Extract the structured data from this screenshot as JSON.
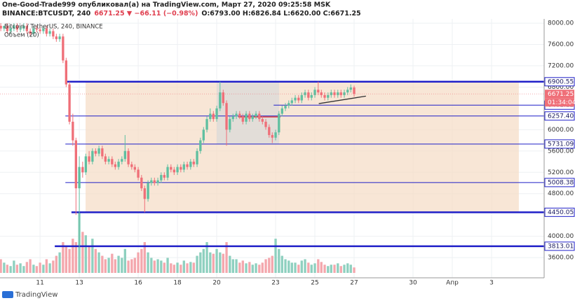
{
  "header": {
    "publisher": "One-Good-Trade999 опубликовал(а) на TradingView.com, Март 27, 2020 09:25:58 MSK",
    "symbol": "BINANCE:BTCUSDT, 240",
    "change": "6671.25 ▼ −66.11 (−0.98%)",
    "ohlc": "O:6793.00 H:6826.84 L:6620.00 C:6671.25"
  },
  "footer": "TradingView",
  "chart_data": {
    "type": "candlestick",
    "legend": [
      "Bitcoin / TetherUS, 240, BINANCE",
      "Объем (20)"
    ],
    "countdown": "01:34:04",
    "up_color": "#5fbfa0",
    "down_color": "#ef6f78",
    "volume_up_color": "#8ed0bf",
    "volume_down_color": "#f4a7ad",
    "xlim": [
      8.96,
      36.68
    ],
    "ylim": [
      3220,
      8080
    ],
    "xticks": [
      11,
      13,
      16,
      18,
      20,
      23,
      25,
      27,
      30,
      {
        "value": 32,
        "label": "Апр"
      },
      {
        "value": 34,
        "label": "3"
      }
    ],
    "yticks": [
      {
        "value": 8000,
        "label": "8000.00"
      },
      {
        "value": 7600,
        "label": "7600.00"
      },
      {
        "value": 7200,
        "label": "7200.00"
      },
      {
        "value": 6800,
        "label": "6800.00"
      },
      {
        "value": 6000,
        "label": "6000.00"
      },
      {
        "value": 5600,
        "label": "5600.00"
      },
      {
        "value": 5200,
        "label": "5200.00"
      },
      {
        "value": 4800,
        "label": "4800.00"
      },
      {
        "value": 4000,
        "label": "4000.00"
      },
      {
        "value": 3600,
        "label": "3600.00"
      }
    ],
    "grid": true,
    "x": [
      9.0,
      9.17,
      9.33,
      9.5,
      9.67,
      9.83,
      10.0,
      10.17,
      10.33,
      10.5,
      10.67,
      10.83,
      11.0,
      11.17,
      11.33,
      11.5,
      11.67,
      11.83,
      12.0,
      12.17,
      12.33,
      12.5,
      12.67,
      12.83,
      13.0,
      13.17,
      13.33,
      13.5,
      13.67,
      13.83,
      14.0,
      14.17,
      14.33,
      14.5,
      14.67,
      14.83,
      15.0,
      15.17,
      15.33,
      15.5,
      15.67,
      15.83,
      16.0,
      16.17,
      16.33,
      16.5,
      16.67,
      16.83,
      17.0,
      17.17,
      17.33,
      17.5,
      17.67,
      17.83,
      18.0,
      18.17,
      18.33,
      18.5,
      18.67,
      18.83,
      19.0,
      19.17,
      19.33,
      19.5,
      19.67,
      19.83,
      20.0,
      20.17,
      20.33,
      20.5,
      20.67,
      20.83,
      21.0,
      21.17,
      21.33,
      21.5,
      21.67,
      21.83,
      22.0,
      22.17,
      22.33,
      22.5,
      22.67,
      22.83,
      23.0,
      23.17,
      23.33,
      23.5,
      23.67,
      23.83,
      24.0,
      24.17,
      24.33,
      24.5,
      24.67,
      24.83,
      25.0,
      25.17,
      25.33,
      25.5,
      25.67,
      25.83,
      26.0,
      26.17,
      26.33,
      26.5,
      26.67,
      26.83,
      27.0
    ],
    "open": [
      7950,
      7900,
      7950,
      7850,
      7900,
      7950,
      7880,
      7900,
      7950,
      7850,
      7800,
      7900,
      7880,
      7850,
      7900,
      7800,
      7850,
      7750,
      7700,
      7750,
      7300,
      6850,
      6150,
      5800,
      4900,
      5300,
      5200,
      5500,
      5400,
      5600,
      5550,
      5650,
      5500,
      5400,
      5450,
      5350,
      5300,
      5400,
      5450,
      5600,
      5350,
      5300,
      5250,
      5100,
      4900,
      4700,
      5000,
      5050,
      5000,
      5050,
      5150,
      5100,
      5300,
      5250,
      5200,
      5300,
      5250,
      5350,
      5300,
      5400,
      5350,
      5600,
      5800,
      6000,
      6200,
      6300,
      6200,
      6400,
      6700,
      6500,
      6000,
      6200,
      6250,
      6300,
      6250,
      6150,
      6300,
      6200,
      6250,
      6300,
      6200,
      6150,
      6050,
      5900,
      5850,
      5950,
      6300,
      6400,
      6450,
      6500,
      6550,
      6600,
      6550,
      6650,
      6700,
      6600,
      6650,
      6750,
      6700,
      6650,
      6600,
      6650,
      6700,
      6650,
      6700,
      6650,
      6700,
      6750,
      6793
    ],
    "high": [
      8000,
      7950,
      8000,
      7950,
      8000,
      8000,
      7950,
      8000,
      8000,
      7900,
      7950,
      7950,
      7930,
      7950,
      7950,
      7900,
      7900,
      7800,
      7800,
      7800,
      7350,
      6900,
      6300,
      5850,
      5500,
      5400,
      5550,
      5600,
      5650,
      5650,
      5700,
      5700,
      5550,
      5500,
      5500,
      5400,
      5450,
      5500,
      5900,
      5650,
      5400,
      5350,
      5300,
      5150,
      4950,
      5050,
      5100,
      5100,
      5100,
      5200,
      5200,
      5350,
      5350,
      5300,
      5350,
      5350,
      5400,
      5400,
      5450,
      5450,
      5650,
      5850,
      6050,
      6250,
      6400,
      6350,
      6450,
      6900,
      6750,
      6550,
      6250,
      6300,
      6350,
      6350,
      6300,
      6350,
      6350,
      6300,
      6350,
      6350,
      6250,
      6200,
      6100,
      5950,
      6000,
      6350,
      6450,
      6500,
      6550,
      6600,
      6650,
      6650,
      6700,
      6750,
      6750,
      6700,
      6800,
      6900,
      6750,
      6700,
      6700,
      6750,
      6750,
      6750,
      6750,
      6750,
      6800,
      6850,
      6826.84
    ],
    "low": [
      7850,
      7850,
      7800,
      7800,
      7850,
      7830,
      7830,
      7850,
      7800,
      7750,
      7750,
      7830,
      7800,
      7800,
      7750,
      7750,
      7700,
      7650,
      7650,
      7250,
      6800,
      6100,
      5700,
      4400,
      3800,
      5100,
      5150,
      5350,
      5350,
      5500,
      5500,
      5450,
      5350,
      5350,
      5300,
      5250,
      5250,
      5350,
      5400,
      5300,
      5250,
      5200,
      5050,
      4850,
      4450,
      4650,
      4950,
      4950,
      4950,
      5000,
      5050,
      5050,
      5200,
      5150,
      5150,
      5200,
      5200,
      5250,
      5250,
      5300,
      5300,
      5550,
      5750,
      5950,
      6150,
      6150,
      6150,
      6350,
      6450,
      5700,
      5950,
      6150,
      6200,
      6200,
      6100,
      6100,
      6150,
      6150,
      6200,
      6150,
      6100,
      6000,
      5850,
      5750,
      5800,
      5900,
      6250,
      6350,
      6400,
      6450,
      6500,
      6500,
      6500,
      6600,
      6550,
      6550,
      6600,
      6650,
      6600,
      6550,
      6550,
      6600,
      6600,
      6600,
      6600,
      6600,
      6650,
      6700,
      6620
    ],
    "close": [
      7900,
      7950,
      7850,
      7900,
      7950,
      7880,
      7900,
      7950,
      7850,
      7800,
      7900,
      7880,
      7850,
      7900,
      7800,
      7850,
      7750,
      7700,
      7750,
      7300,
      6850,
      6150,
      5800,
      4900,
      5300,
      5200,
      5500,
      5400,
      5600,
      5550,
      5650,
      5500,
      5400,
      5450,
      5350,
      5300,
      5400,
      5450,
      5600,
      5350,
      5300,
      5250,
      5100,
      4900,
      4700,
      5000,
      5050,
      5000,
      5050,
      5150,
      5100,
      5300,
      5250,
      5200,
      5300,
      5250,
      5350,
      5300,
      5400,
      5350,
      5600,
      5800,
      6000,
      6200,
      6300,
      6200,
      6400,
      6700,
      6500,
      6000,
      6200,
      6250,
      6300,
      6250,
      6150,
      6300,
      6200,
      6250,
      6300,
      6200,
      6150,
      6050,
      5900,
      5850,
      5950,
      6300,
      6400,
      6450,
      6500,
      6550,
      6600,
      6550,
      6650,
      6700,
      6600,
      6650,
      6750,
      6700,
      6650,
      6600,
      6650,
      6700,
      6650,
      6700,
      6650,
      6700,
      6750,
      6793,
      6671.25
    ],
    "volume": [
      20,
      15,
      12,
      10,
      18,
      12,
      14,
      10,
      16,
      20,
      12,
      10,
      15,
      12,
      20,
      14,
      18,
      25,
      30,
      45,
      40,
      35,
      50,
      45,
      90,
      60,
      55,
      40,
      50,
      35,
      30,
      25,
      20,
      22,
      28,
      20,
      25,
      22,
      35,
      18,
      20,
      22,
      30,
      35,
      45,
      30,
      22,
      18,
      20,
      18,
      15,
      22,
      14,
      12,
      15,
      12,
      18,
      14,
      16,
      15,
      25,
      30,
      35,
      45,
      30,
      28,
      35,
      30,
      28,
      45,
      25,
      20,
      20,
      15,
      18,
      14,
      16,
      12,
      14,
      12,
      15,
      20,
      22,
      25,
      50,
      35,
      25,
      20,
      18,
      15,
      15,
      12,
      18,
      20,
      15,
      12,
      14,
      20,
      16,
      12,
      10,
      12,
      12,
      14,
      10,
      12,
      14,
      12,
      8
    ],
    "levels": [
      {
        "value": 6900.55,
        "from": 12.29,
        "thick": true
      },
      {
        "value": 6461.12,
        "from": 22.9,
        "thick": false
      },
      {
        "value": 6257.4,
        "label": "6257.40",
        "from": 12.29,
        "thick": false
      },
      {
        "value": 5731.09,
        "from": 12.29,
        "thick": false
      },
      {
        "value": 5008.38,
        "from": 12.29,
        "thick": false
      },
      {
        "value": 4450.05,
        "from": 12.6,
        "thick": true
      },
      {
        "value": 3813.01,
        "from": 11.75,
        "thick": true
      }
    ],
    "level_color": "#1f1fc8",
    "zones": [
      {
        "x": [
          13.32,
          35.39
        ],
        "y": [
          4450.05,
          6900.55
        ],
        "color": "#f5dcc4"
      },
      {
        "x": [
          20.0,
          23.18
        ],
        "y": [
          5731.09,
          6900.55
        ],
        "color": "#d8d8d8"
      }
    ],
    "trendlines": [
      {
        "x": [
          21.1,
          23.25
        ],
        "y": [
          6240,
          6240
        ],
        "color": "#e03030"
      },
      {
        "x": [
          25.2,
          27.6
        ],
        "y": [
          6490,
          6630
        ],
        "color": "#333333"
      }
    ]
  }
}
